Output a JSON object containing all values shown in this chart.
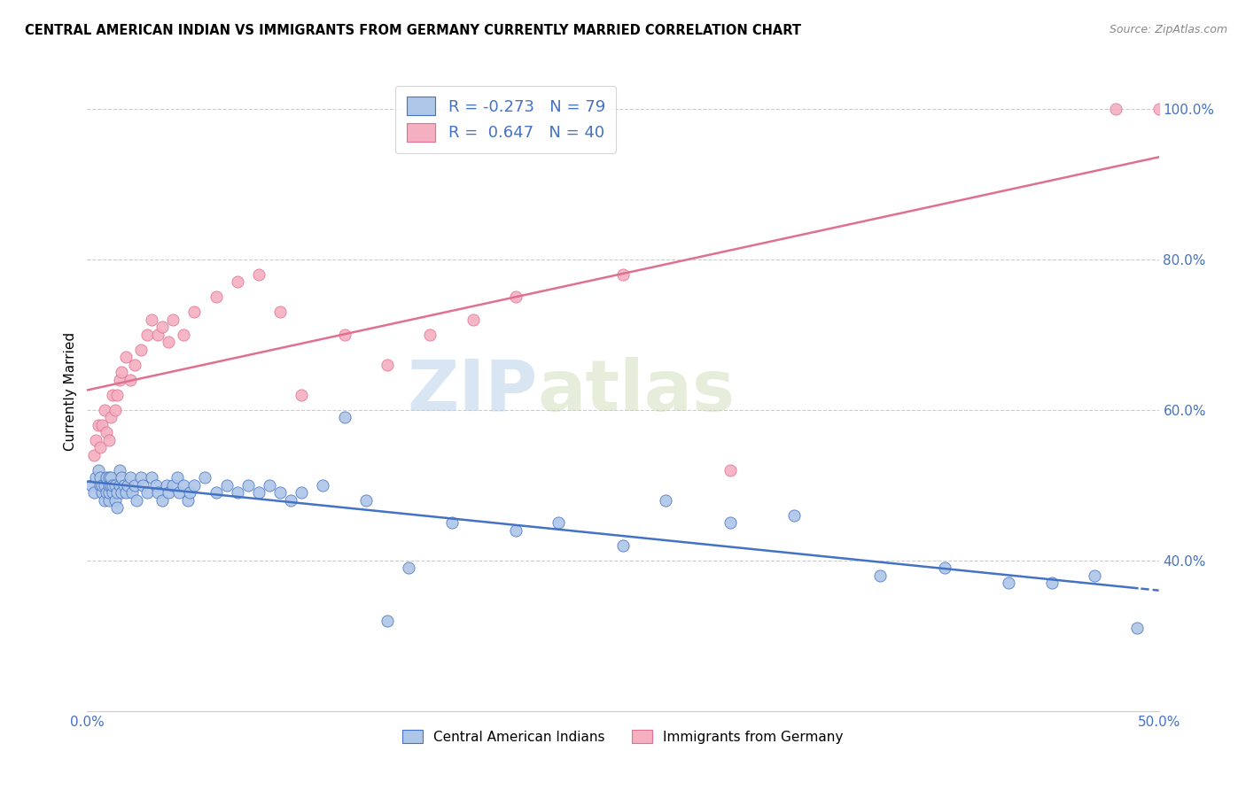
{
  "title": "CENTRAL AMERICAN INDIAN VS IMMIGRANTS FROM GERMANY CURRENTLY MARRIED CORRELATION CHART",
  "source": "Source: ZipAtlas.com",
  "ylabel_label": "Currently Married",
  "x_min": 0.0,
  "x_max": 0.5,
  "y_min": 0.2,
  "y_max": 1.05,
  "blue_R": -0.273,
  "blue_N": 79,
  "pink_R": 0.647,
  "pink_N": 40,
  "blue_color": "#aec6e8",
  "pink_color": "#f4afc0",
  "blue_line_color": "#4472c4",
  "pink_line_color": "#e07090",
  "watermark_zip": "ZIP",
  "watermark_atlas": "atlas",
  "legend_blue_label": "Central American Indians",
  "legend_pink_label": "Immigrants from Germany",
  "blue_x": [
    0.002,
    0.003,
    0.004,
    0.005,
    0.006,
    0.006,
    0.007,
    0.007,
    0.008,
    0.008,
    0.009,
    0.009,
    0.01,
    0.01,
    0.01,
    0.01,
    0.011,
    0.011,
    0.012,
    0.012,
    0.013,
    0.013,
    0.014,
    0.014,
    0.015,
    0.015,
    0.016,
    0.016,
    0.017,
    0.018,
    0.019,
    0.02,
    0.021,
    0.022,
    0.023,
    0.025,
    0.026,
    0.028,
    0.03,
    0.032,
    0.033,
    0.035,
    0.037,
    0.038,
    0.04,
    0.042,
    0.043,
    0.045,
    0.047,
    0.048,
    0.05,
    0.055,
    0.06,
    0.065,
    0.07,
    0.075,
    0.08,
    0.085,
    0.09,
    0.095,
    0.1,
    0.11,
    0.12,
    0.13,
    0.14,
    0.15,
    0.17,
    0.2,
    0.22,
    0.25,
    0.27,
    0.3,
    0.33,
    0.37,
    0.4,
    0.43,
    0.45,
    0.47,
    0.49
  ],
  "blue_y": [
    0.5,
    0.49,
    0.51,
    0.52,
    0.5,
    0.51,
    0.49,
    0.5,
    0.48,
    0.5,
    0.49,
    0.51,
    0.48,
    0.49,
    0.51,
    0.5,
    0.5,
    0.51,
    0.49,
    0.5,
    0.48,
    0.5,
    0.49,
    0.47,
    0.5,
    0.52,
    0.49,
    0.51,
    0.5,
    0.49,
    0.5,
    0.51,
    0.49,
    0.5,
    0.48,
    0.51,
    0.5,
    0.49,
    0.51,
    0.5,
    0.49,
    0.48,
    0.5,
    0.49,
    0.5,
    0.51,
    0.49,
    0.5,
    0.48,
    0.49,
    0.5,
    0.51,
    0.49,
    0.5,
    0.49,
    0.5,
    0.49,
    0.5,
    0.49,
    0.48,
    0.49,
    0.5,
    0.59,
    0.48,
    0.32,
    0.39,
    0.45,
    0.44,
    0.45,
    0.42,
    0.48,
    0.45,
    0.46,
    0.38,
    0.39,
    0.37,
    0.37,
    0.38,
    0.31
  ],
  "pink_x": [
    0.003,
    0.004,
    0.005,
    0.006,
    0.007,
    0.008,
    0.009,
    0.01,
    0.011,
    0.012,
    0.013,
    0.014,
    0.015,
    0.016,
    0.018,
    0.02,
    0.022,
    0.025,
    0.028,
    0.03,
    0.033,
    0.035,
    0.038,
    0.04,
    0.045,
    0.05,
    0.06,
    0.07,
    0.08,
    0.09,
    0.1,
    0.12,
    0.14,
    0.16,
    0.18,
    0.2,
    0.25,
    0.3,
    0.48,
    0.5
  ],
  "pink_y": [
    0.54,
    0.56,
    0.58,
    0.55,
    0.58,
    0.6,
    0.57,
    0.56,
    0.59,
    0.62,
    0.6,
    0.62,
    0.64,
    0.65,
    0.67,
    0.64,
    0.66,
    0.68,
    0.7,
    0.72,
    0.7,
    0.71,
    0.69,
    0.72,
    0.7,
    0.73,
    0.75,
    0.77,
    0.78,
    0.73,
    0.62,
    0.7,
    0.66,
    0.7,
    0.72,
    0.75,
    0.78,
    0.52,
    1.0,
    1.0
  ]
}
